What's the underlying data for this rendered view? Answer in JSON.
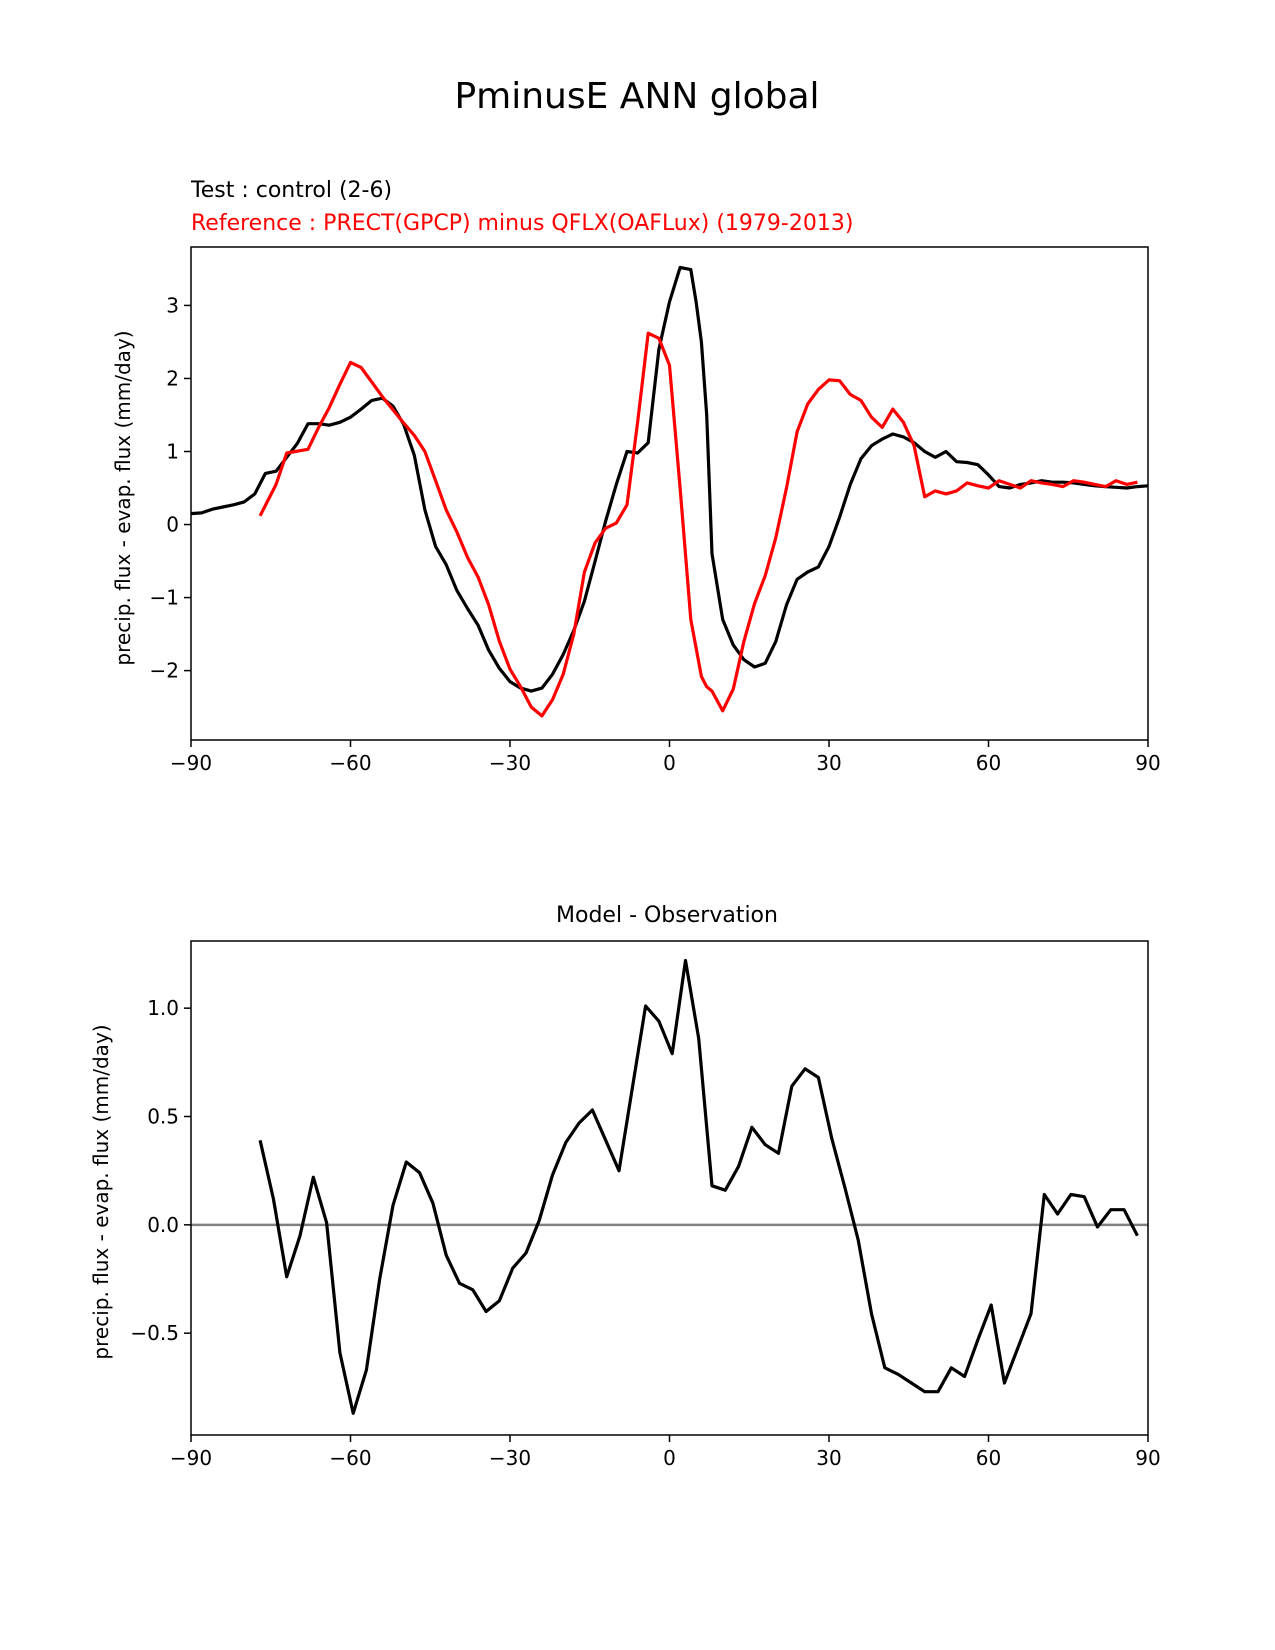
{
  "figure_title": "PminusE ANN global",
  "colors": {
    "test": "#000000",
    "reference": "#ff0000",
    "zero_line": "#808080"
  },
  "chart_data": [
    {
      "type": "line",
      "test_label": "Test : control (2-6)",
      "reference_label": "Reference : PRECT(GPCP) minus QFLX(OAFLux) (1979-2013)",
      "ylabel": "precip. flux - evap. flux (mm/day)",
      "xlim": [
        -90,
        90
      ],
      "ylim": [
        -2.95,
        3.8
      ],
      "xticks": [
        -90,
        -60,
        -30,
        0,
        30,
        60,
        90
      ],
      "yticks": [
        -2,
        -1,
        0,
        1,
        2,
        3
      ],
      "series": [
        {
          "role": "test",
          "x": [
            -90,
            -88,
            -86,
            -84,
            -82,
            -80,
            -78,
            -76,
            -74,
            -72,
            -70,
            -68,
            -66,
            -64,
            -62,
            -60,
            -58,
            -56,
            -54,
            -52,
            -50,
            -48,
            -46,
            -44,
            -42,
            -40,
            -38,
            -36,
            -34,
            -32,
            -30,
            -28,
            -26,
            -24,
            -22,
            -20,
            -18,
            -16,
            -14,
            -12,
            -10,
            -8,
            -6,
            -4,
            -2,
            0,
            2,
            4,
            5,
            6,
            7,
            8,
            10,
            12,
            14,
            16,
            18,
            20,
            22,
            24,
            26,
            28,
            30,
            32,
            34,
            36,
            38,
            40,
            42,
            44,
            46,
            48,
            50,
            52,
            54,
            56,
            58,
            60,
            62,
            64,
            66,
            68,
            70,
            72,
            74,
            76,
            78,
            80,
            82,
            84,
            86,
            88,
            90
          ],
          "y": [
            0.15,
            0.16,
            0.21,
            0.24,
            0.27,
            0.31,
            0.42,
            0.7,
            0.73,
            0.92,
            1.11,
            1.38,
            1.38,
            1.36,
            1.4,
            1.47,
            1.58,
            1.7,
            1.73,
            1.62,
            1.37,
            0.95,
            0.2,
            -0.3,
            -0.55,
            -0.9,
            -1.15,
            -1.38,
            -1.72,
            -1.97,
            -2.15,
            -2.24,
            -2.28,
            -2.24,
            -2.05,
            -1.78,
            -1.45,
            -1.05,
            -0.5,
            0.05,
            0.55,
            1.0,
            0.98,
            1.12,
            2.4,
            3.05,
            3.52,
            3.49,
            3.05,
            2.5,
            1.5,
            -0.4,
            -1.3,
            -1.65,
            -1.85,
            -1.95,
            -1.9,
            -1.6,
            -1.1,
            -0.75,
            -0.65,
            -0.58,
            -0.3,
            0.1,
            0.55,
            0.9,
            1.08,
            1.17,
            1.24,
            1.2,
            1.12,
            1.0,
            0.92,
            1.0,
            0.86,
            0.85,
            0.82,
            0.68,
            0.52,
            0.5,
            0.55,
            0.57,
            0.6,
            0.58,
            0.58,
            0.57,
            0.55,
            0.53,
            0.52,
            0.51,
            0.5,
            0.52,
            0.53
          ]
        },
        {
          "role": "reference",
          "x": [
            -77,
            -74,
            -72,
            -68,
            -66,
            -64,
            -62,
            -60,
            -58,
            -56,
            -54,
            -52,
            -50,
            -48,
            -46,
            -44,
            -42,
            -40,
            -38,
            -36,
            -34,
            -32,
            -30,
            -28,
            -26,
            -24,
            -22,
            -20,
            -18,
            -16,
            -14,
            -12,
            -10,
            -8,
            -6,
            -4,
            -2,
            0,
            2,
            4,
            6,
            7,
            8,
            10,
            12,
            14,
            16,
            18,
            20,
            22,
            24,
            26,
            28,
            30,
            32,
            34,
            36,
            38,
            40,
            42,
            44,
            46,
            48,
            50,
            52,
            54,
            56,
            58,
            60,
            62,
            64,
            66,
            68,
            70,
            72,
            74,
            76,
            78,
            80,
            82,
            84,
            86,
            88
          ],
          "y": [
            0.12,
            0.55,
            0.98,
            1.03,
            1.33,
            1.6,
            1.92,
            2.22,
            2.15,
            1.95,
            1.75,
            1.57,
            1.39,
            1.22,
            1.0,
            0.6,
            0.2,
            -0.1,
            -0.45,
            -0.72,
            -1.1,
            -1.6,
            -1.98,
            -2.22,
            -2.5,
            -2.62,
            -2.4,
            -2.05,
            -1.5,
            -0.65,
            -0.25,
            -0.05,
            0.02,
            0.27,
            1.4,
            2.62,
            2.55,
            2.18,
            0.5,
            -1.3,
            -2.08,
            -2.22,
            -2.28,
            -2.55,
            -2.25,
            -1.6,
            -1.08,
            -0.7,
            -0.18,
            0.5,
            1.27,
            1.65,
            1.85,
            1.98,
            1.97,
            1.78,
            1.7,
            1.47,
            1.33,
            1.58,
            1.4,
            1.08,
            0.38,
            0.46,
            0.42,
            0.46,
            0.57,
            0.53,
            0.5,
            0.6,
            0.55,
            0.5,
            0.6,
            0.57,
            0.55,
            0.52,
            0.6,
            0.58,
            0.55,
            0.52,
            0.6,
            0.55,
            0.58
          ]
        }
      ]
    },
    {
      "type": "line",
      "title": "Model - Observation",
      "ylabel": "precip. flux - evap. flux (mm/day)",
      "xlim": [
        -90,
        90
      ],
      "ylim": [
        -0.97,
        1.31
      ],
      "xticks": [
        -90,
        -60,
        -30,
        0,
        30,
        60,
        90
      ],
      "yticks": [
        -0.5,
        0.0,
        0.5,
        1.0
      ],
      "zero_line": 0.0,
      "series": [
        {
          "role": "difference",
          "x": [
            -77,
            -74.5,
            -72,
            -69.5,
            -67,
            -64.5,
            -62,
            -59.5,
            -57,
            -54.5,
            -52,
            -49.5,
            -47,
            -44.5,
            -42,
            -39.5,
            -37,
            -34.5,
            -32,
            -29.5,
            -27,
            -24.5,
            -22,
            -19.5,
            -17,
            -14.5,
            -12,
            -9.5,
            -7,
            -4.5,
            -2,
            0.5,
            3,
            5.5,
            8,
            10.5,
            13,
            15.5,
            18,
            20.5,
            23,
            25.5,
            28,
            30.5,
            33,
            35.5,
            38,
            40.5,
            43,
            45.5,
            48,
            50.5,
            53,
            55.5,
            58,
            60.5,
            63,
            65.5,
            68,
            70.5,
            73,
            75.5,
            78,
            80.5,
            83,
            85.5,
            88
          ],
          "y": [
            0.39,
            0.12,
            -0.24,
            -0.05,
            0.22,
            0.01,
            -0.59,
            -0.87,
            -0.67,
            -0.25,
            0.09,
            0.29,
            0.24,
            0.1,
            -0.14,
            -0.27,
            -0.3,
            -0.4,
            -0.35,
            -0.2,
            -0.13,
            0.02,
            0.23,
            0.38,
            0.47,
            0.53,
            0.39,
            0.25,
            0.63,
            1.01,
            0.94,
            0.79,
            1.22,
            0.86,
            0.18,
            0.16,
            0.27,
            0.45,
            0.37,
            0.33,
            0.64,
            0.72,
            0.68,
            0.4,
            0.17,
            -0.07,
            -0.41,
            -0.66,
            -0.69,
            -0.73,
            -0.77,
            -0.77,
            -0.66,
            -0.7,
            -0.53,
            -0.37,
            -0.73,
            -0.57,
            -0.41,
            0.14,
            0.05,
            0.14,
            0.13,
            -0.01,
            0.07,
            0.07,
            -0.05
          ]
        }
      ]
    }
  ]
}
